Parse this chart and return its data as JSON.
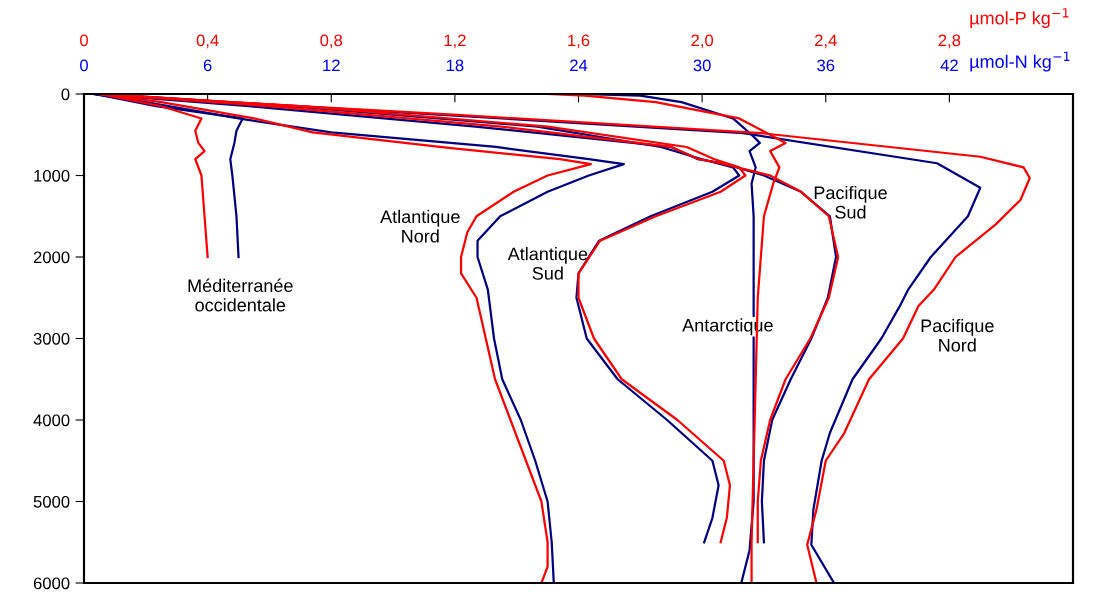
{
  "chart_data": {
    "type": "line",
    "xlabel": "µmol-N kg$^{−1}$",
    "x2label": "µmol-P kg$^{−1}$",
    "xlim": [
      0,
      48
    ],
    "xticks": [
      0,
      6,
      12,
      18,
      24,
      30,
      36,
      42
    ],
    "x2lim": [
      0,
      3.2
    ],
    "x2ticks": [
      {
        "value": 0,
        "label": "0"
      },
      {
        "value": 0.4,
        "label": "0,4"
      },
      {
        "value": 0.8,
        "label": "0,8"
      },
      {
        "value": 1.2,
        "label": "1,2"
      },
      {
        "value": 1.6,
        "label": "1,6"
      },
      {
        "value": 2.0,
        "label": "2,0"
      },
      {
        "value": 2.4,
        "label": "2,4"
      },
      {
        "value": 2.8,
        "label": "2,8"
      }
    ],
    "ylim": [
      6000,
      0
    ],
    "yticks": [
      0,
      1000,
      2000,
      3000,
      4000,
      5000,
      6000
    ],
    "grid": false,
    "legend": false,
    "marker": "none",
    "line_style": "solid",
    "series": [
      {
        "axis": "x2",
        "color": "#ff0000",
        "x": [
          0.05,
          0.25,
          0.38,
          0.36,
          0.37,
          0.39,
          0.36,
          0.38,
          0.39,
          0.4
        ],
        "values": [
          0,
          150,
          300,
          450,
          600,
          700,
          800,
          1000,
          1500,
          2000
        ]
      },
      {
        "color": "#000080",
        "x": [
          0.5,
          3.5,
          7.7,
          7.4,
          7.3,
          7.1,
          7.2,
          7.4,
          7.5
        ],
        "values": [
          0,
          150,
          300,
          450,
          600,
          800,
          1000,
          1500,
          2000
        ]
      },
      {
        "axis": "x2",
        "color": "#ff0000",
        "x": [
          0.05,
          0.25,
          0.55,
          0.74,
          1.18,
          1.54,
          1.64,
          1.5,
          1.39,
          1.27,
          1.24,
          1.22,
          1.22,
          1.27,
          1.3,
          1.33,
          1.38,
          1.43,
          1.48,
          1.5,
          1.5,
          1.48
        ],
        "values": [
          0,
          100,
          300,
          470,
          660,
          800,
          860,
          1000,
          1200,
          1500,
          1700,
          2000,
          2200,
          2500,
          3000,
          3500,
          4000,
          4500,
          5000,
          5500,
          5800,
          6000
        ]
      },
      {
        "color": "#000080",
        "x": [
          0.5,
          3,
          7.5,
          12,
          20,
          24.5,
          26.2,
          24.5,
          22.5,
          20.2,
          19.1,
          19.1,
          19.6,
          19.9,
          20.3,
          21.2,
          21.9,
          22.5,
          22.7,
          22.8
        ],
        "values": [
          0,
          100,
          300,
          470,
          650,
          800,
          860,
          1000,
          1200,
          1500,
          1800,
          2000,
          2400,
          3000,
          3500,
          4000,
          4500,
          5000,
          5500,
          6000
        ]
      },
      {
        "axis": "x2",
        "color": "#ff0000",
        "x": [
          0.05,
          0.7,
          1.5,
          1.95,
          2.04,
          2.12,
          2.14,
          2.06,
          1.85,
          1.67,
          1.6,
          1.6,
          1.65,
          1.74,
          1.92,
          2.07,
          2.09,
          2.08,
          2.06
        ],
        "values": [
          0,
          150,
          400,
          650,
          800,
          900,
          1000,
          1200,
          1500,
          1800,
          2200,
          2500,
          3000,
          3500,
          4000,
          4500,
          4800,
          5200,
          5500
        ]
      },
      {
        "color": "#000080",
        "x": [
          0.5,
          10,
          22,
          28,
          30,
          31.5,
          31.8,
          30.5,
          27.5,
          25,
          24,
          23.9,
          24.4,
          25.9,
          28.3,
          30.5,
          30.8,
          30.5,
          30.1
        ],
        "values": [
          0,
          150,
          400,
          650,
          800,
          900,
          1000,
          1200,
          1500,
          1800,
          2200,
          2500,
          3000,
          3500,
          4000,
          4500,
          4800,
          5200,
          5500
        ]
      },
      {
        "axis": "x2",
        "color": "#ff0000",
        "x": [
          1.5,
          1.62,
          1.85,
          2.12,
          2.22,
          2.27,
          2.22,
          2.25,
          2.23,
          2.2,
          2.18,
          2.17,
          2.16,
          2.16
        ],
        "values": [
          0,
          20,
          100,
          300,
          500,
          600,
          700,
          900,
          1100,
          1500,
          2500,
          4000,
          5500,
          6000
        ]
      },
      {
        "color": "#000080",
        "x": [
          24,
          27,
          29,
          31.5,
          32.4,
          32.8,
          32.3,
          32.6,
          32.4,
          32.5,
          32.5,
          32.5,
          32.5,
          32.3,
          31.9
        ],
        "values": [
          0,
          20,
          100,
          300,
          500,
          600,
          700,
          900,
          1100,
          1500,
          2500,
          4000,
          5000,
          5600,
          6000
        ]
      },
      {
        "axis": "x2",
        "color": "#ff0000",
        "x": [
          0.05,
          0.6,
          1.35,
          1.9,
          1.99,
          2.06,
          2.22,
          2.32,
          2.41,
          2.44,
          2.41,
          2.35,
          2.27,
          2.22,
          2.19,
          2.18,
          2.18
        ],
        "values": [
          0,
          150,
          400,
          650,
          800,
          850,
          1000,
          1200,
          1500,
          2000,
          2500,
          3000,
          3500,
          4000,
          4500,
          5000,
          5500
        ]
      },
      {
        "color": "#000080",
        "x": [
          0.5,
          8,
          19,
          28.5,
          29.8,
          31,
          33,
          34.8,
          36.2,
          36.5,
          36.1,
          35.3,
          34.3,
          33.4,
          33.0,
          32.9,
          33.0
        ],
        "values": [
          0,
          150,
          400,
          650,
          800,
          850,
          1000,
          1200,
          1500,
          2000,
          2500,
          3000,
          3500,
          4000,
          4500,
          5000,
          5500
        ]
      },
      {
        "axis": "x2",
        "color": "#ff0000",
        "x": [
          0.05,
          0.47,
          1.18,
          2.19,
          2.9,
          3.04,
          3.06,
          3.03,
          2.95,
          2.82,
          2.75,
          2.7,
          2.65,
          2.54,
          2.46,
          2.4,
          2.37,
          2.34,
          2.37
        ],
        "values": [
          0,
          100,
          250,
          480,
          770,
          900,
          1030,
          1300,
          1600,
          2000,
          2400,
          2600,
          3000,
          3500,
          4160,
          4500,
          5100,
          5530,
          6000
        ]
      },
      {
        "color": "#000080",
        "x": [
          1,
          7,
          17,
          32,
          41.4,
          43.5,
          42.9,
          41.1,
          40,
          39.6,
          38.7,
          37.3,
          36.2,
          35.8,
          35.4,
          35.3,
          36.4
        ],
        "values": [
          0,
          100,
          250,
          480,
          850,
          1150,
          1500,
          2000,
          2400,
          2600,
          3000,
          3500,
          4160,
          4500,
          5100,
          5530,
          6000
        ]
      }
    ],
    "annotations": [
      "Méditerranée\noccidentale",
      "Atlantique\nNord",
      "Atlantique\nSud",
      "Antarctique",
      "Pacifique\nSud",
      "Pacifique\nNord"
    ]
  }
}
